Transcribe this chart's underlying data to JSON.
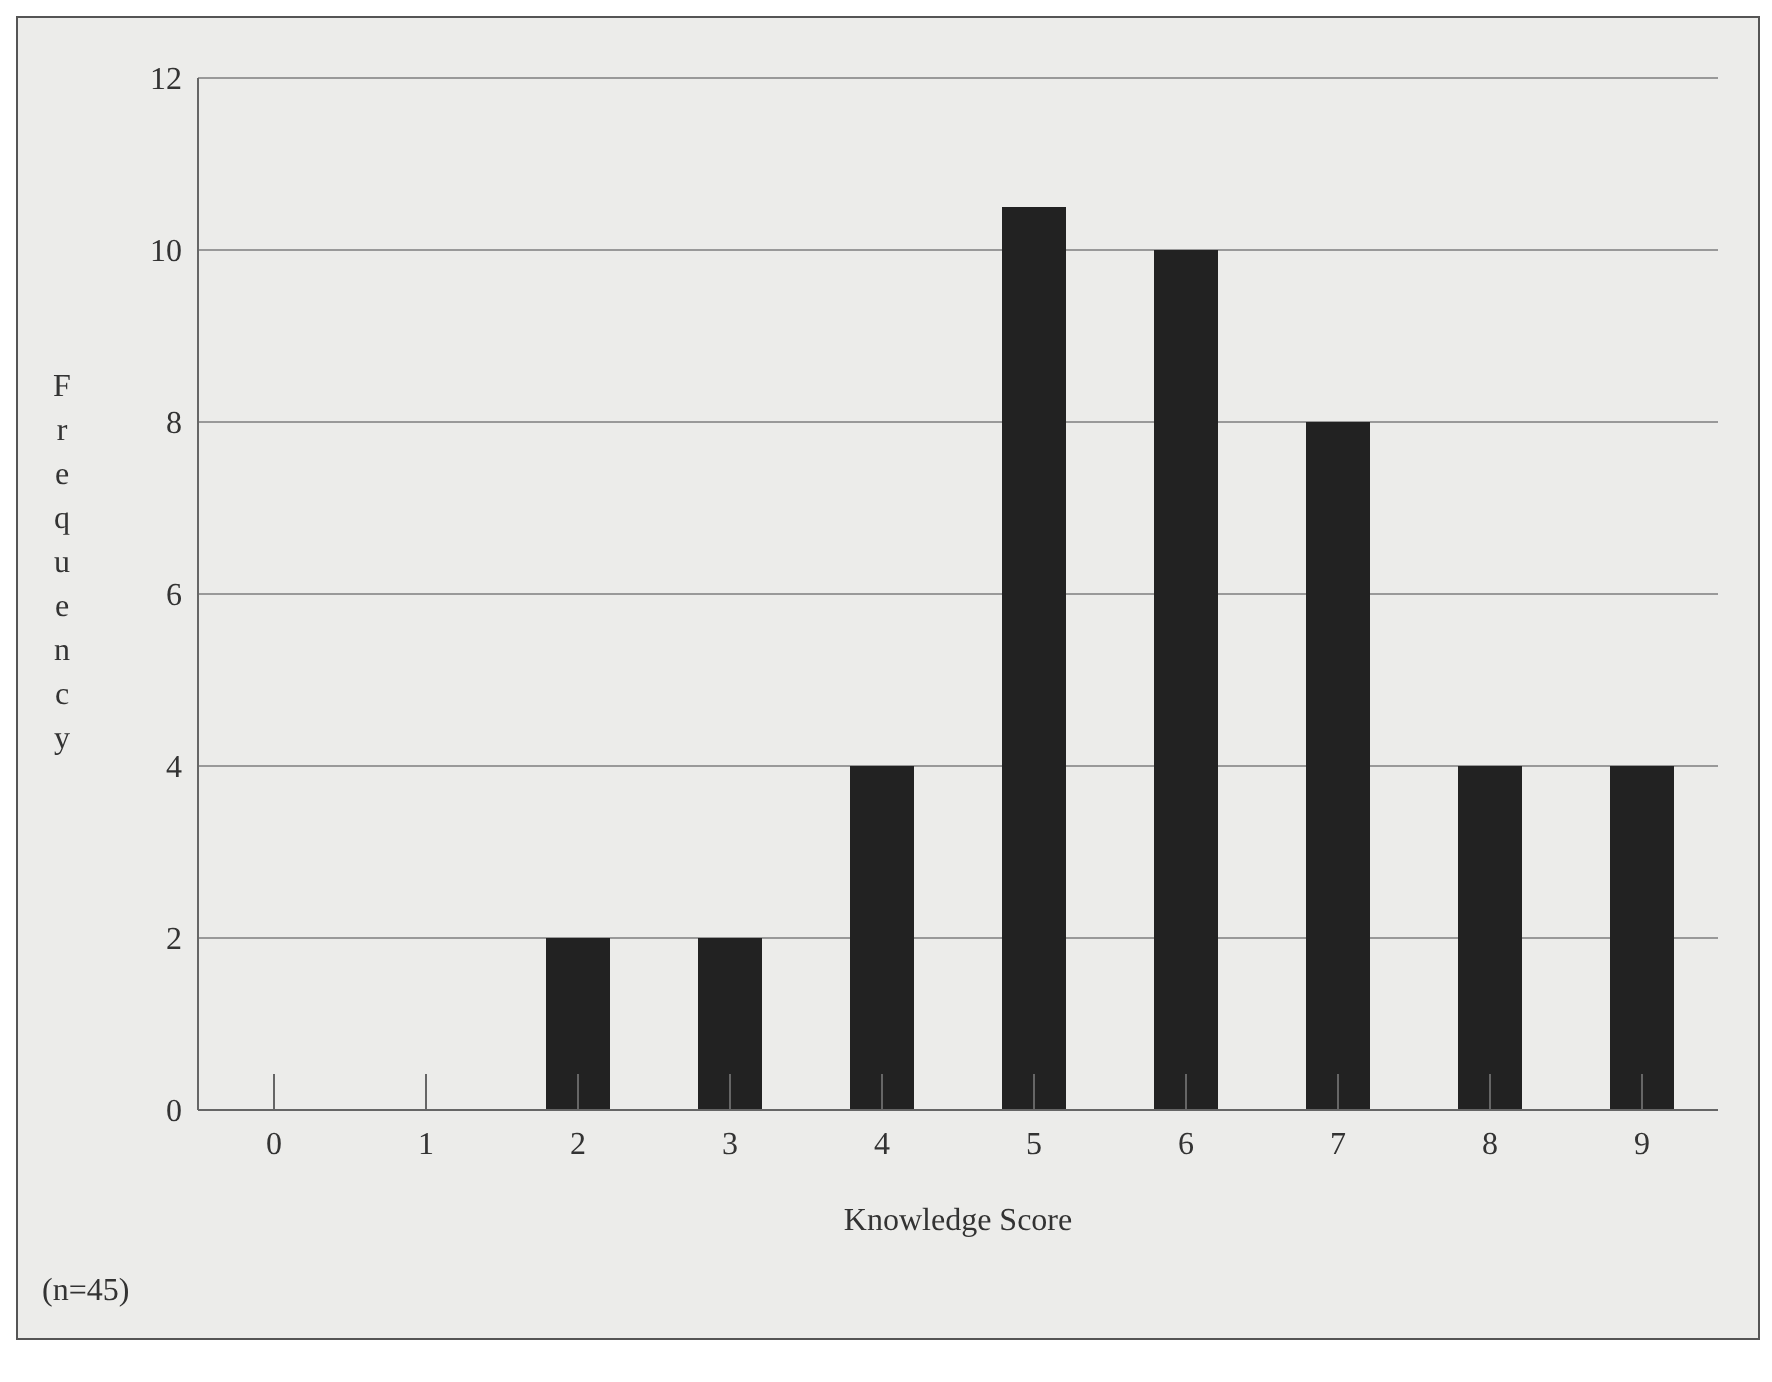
{
  "chart_data": {
    "type": "bar",
    "xlabel": "Knowledge Score",
    "ylabel": "Frequency",
    "categories": [
      "0",
      "1",
      "2",
      "3",
      "4",
      "5",
      "6",
      "7",
      "8",
      "9"
    ],
    "values": [
      0,
      0,
      2,
      2,
      4,
      10.5,
      10,
      8,
      4,
      4
    ],
    "color": "#222222",
    "ylim": [
      0,
      12
    ],
    "yticks": [
      0,
      2,
      4,
      6,
      8,
      10,
      12
    ],
    "grid": "y",
    "annotations": [
      "(n=45)"
    ]
  }
}
